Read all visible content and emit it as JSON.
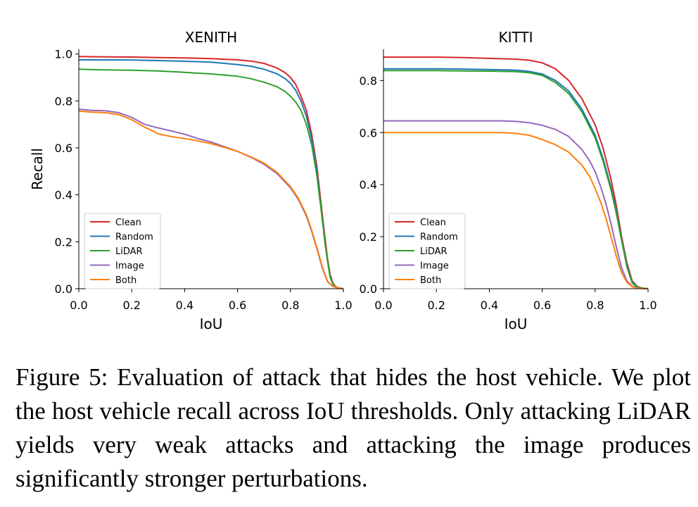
{
  "caption": "Figure 5: Evaluation of attack that hides the host vehicle. We plot the host vehicle recall across IoU thresholds. Only attacking LiDAR yields very weak attacks and attacking the image produces significantly stronger perturbations.",
  "chart_data": [
    {
      "type": "line",
      "title": "XENITH",
      "xlabel": "IoU",
      "ylabel": "Recall",
      "xlim": [
        0.0,
        1.0
      ],
      "ylim": [
        -0.0,
        1.02
      ],
      "xticks": [
        0.0,
        0.2,
        0.4,
        0.6,
        0.8,
        1.0
      ],
      "yticks": [
        0.0,
        0.2,
        0.4,
        0.6,
        0.8,
        1.0
      ],
      "x_tick_labels": [
        "0.0",
        "0.2",
        "0.4",
        "0.6",
        "0.8",
        "1.0"
      ],
      "y_tick_labels": [
        "0.0",
        "0.2",
        "0.4",
        "0.6",
        "0.8",
        "1.0"
      ],
      "grid": false,
      "legend": "lower-left",
      "series": [
        {
          "name": "Clean",
          "color": "#d62728",
          "x": [
            0.0,
            0.1,
            0.2,
            0.3,
            0.4,
            0.5,
            0.6,
            0.65,
            0.7,
            0.75,
            0.78,
            0.8,
            0.82,
            0.84,
            0.86,
            0.88,
            0.9,
            0.92,
            0.93,
            0.94,
            0.95,
            0.96,
            0.97,
            0.98,
            1.0
          ],
          "y": [
            0.989,
            0.988,
            0.987,
            0.985,
            0.983,
            0.98,
            0.975,
            0.97,
            0.96,
            0.94,
            0.92,
            0.9,
            0.87,
            0.82,
            0.76,
            0.66,
            0.52,
            0.32,
            0.22,
            0.13,
            0.06,
            0.025,
            0.01,
            0.004,
            0.0
          ]
        },
        {
          "name": "Random",
          "color": "#1f77b4",
          "x": [
            0.0,
            0.1,
            0.2,
            0.3,
            0.4,
            0.5,
            0.6,
            0.65,
            0.7,
            0.75,
            0.78,
            0.8,
            0.82,
            0.84,
            0.86,
            0.88,
            0.9,
            0.92,
            0.93,
            0.94,
            0.95,
            0.96,
            0.97,
            0.98,
            1.0
          ],
          "y": [
            0.975,
            0.975,
            0.974,
            0.972,
            0.969,
            0.965,
            0.955,
            0.948,
            0.935,
            0.915,
            0.895,
            0.875,
            0.845,
            0.8,
            0.735,
            0.64,
            0.5,
            0.3,
            0.2,
            0.12,
            0.05,
            0.02,
            0.008,
            0.003,
            0.0
          ]
        },
        {
          "name": "LiDAR",
          "color": "#2ca02c",
          "x": [
            0.0,
            0.1,
            0.2,
            0.3,
            0.4,
            0.5,
            0.6,
            0.65,
            0.7,
            0.75,
            0.78,
            0.8,
            0.82,
            0.84,
            0.86,
            0.88,
            0.9,
            0.92,
            0.93,
            0.94,
            0.95,
            0.96,
            0.97,
            0.98,
            1.0
          ],
          "y": [
            0.935,
            0.932,
            0.931,
            0.928,
            0.922,
            0.915,
            0.905,
            0.895,
            0.88,
            0.86,
            0.84,
            0.82,
            0.795,
            0.76,
            0.7,
            0.615,
            0.48,
            0.3,
            0.2,
            0.12,
            0.05,
            0.02,
            0.008,
            0.003,
            0.0
          ]
        },
        {
          "name": "Image",
          "color": "#9467bd",
          "x": [
            0.0,
            0.05,
            0.1,
            0.15,
            0.2,
            0.25,
            0.3,
            0.35,
            0.4,
            0.45,
            0.5,
            0.55,
            0.6,
            0.65,
            0.7,
            0.75,
            0.8,
            0.83,
            0.86,
            0.88,
            0.9,
            0.92,
            0.94,
            0.96,
            0.98,
            1.0
          ],
          "y": [
            0.765,
            0.76,
            0.758,
            0.75,
            0.73,
            0.7,
            0.685,
            0.672,
            0.658,
            0.64,
            0.625,
            0.605,
            0.585,
            0.56,
            0.53,
            0.49,
            0.43,
            0.38,
            0.31,
            0.245,
            0.17,
            0.09,
            0.03,
            0.01,
            0.003,
            0.0
          ]
        },
        {
          "name": "Both",
          "color": "#ff7f0e",
          "x": [
            0.0,
            0.05,
            0.1,
            0.15,
            0.2,
            0.25,
            0.3,
            0.35,
            0.4,
            0.45,
            0.5,
            0.55,
            0.6,
            0.65,
            0.7,
            0.75,
            0.8,
            0.83,
            0.86,
            0.88,
            0.9,
            0.92,
            0.94,
            0.96,
            0.98,
            1.0
          ],
          "y": [
            0.757,
            0.752,
            0.75,
            0.742,
            0.72,
            0.688,
            0.66,
            0.648,
            0.64,
            0.63,
            0.618,
            0.602,
            0.585,
            0.562,
            0.535,
            0.495,
            0.435,
            0.385,
            0.315,
            0.25,
            0.175,
            0.095,
            0.032,
            0.01,
            0.003,
            0.0
          ]
        }
      ]
    },
    {
      "type": "line",
      "title": "KITTI",
      "xlabel": "IoU",
      "ylabel": "",
      "xlim": [
        0.0,
        1.0
      ],
      "ylim": [
        -0.0,
        0.92
      ],
      "xticks": [
        0.0,
        0.2,
        0.4,
        0.6,
        0.8,
        1.0
      ],
      "yticks": [
        0.0,
        0.2,
        0.4,
        0.6,
        0.8
      ],
      "x_tick_labels": [
        "0.0",
        "0.2",
        "0.4",
        "0.6",
        "0.8",
        "1.0"
      ],
      "y_tick_labels": [
        "0.0",
        "0.2",
        "0.4",
        "0.6",
        "0.8"
      ],
      "grid": false,
      "legend": "lower-left",
      "series": [
        {
          "name": "Clean",
          "color": "#d62728",
          "x": [
            0.0,
            0.1,
            0.2,
            0.3,
            0.4,
            0.5,
            0.55,
            0.6,
            0.65,
            0.7,
            0.75,
            0.8,
            0.83,
            0.86,
            0.88,
            0.9,
            0.92,
            0.94,
            0.96,
            0.98,
            1.0
          ],
          "y": [
            0.89,
            0.89,
            0.89,
            0.888,
            0.885,
            0.882,
            0.878,
            0.868,
            0.845,
            0.8,
            0.73,
            0.63,
            0.54,
            0.42,
            0.32,
            0.2,
            0.1,
            0.03,
            0.008,
            0.002,
            0.0
          ]
        },
        {
          "name": "Random",
          "color": "#1f77b4",
          "x": [
            0.0,
            0.1,
            0.2,
            0.3,
            0.4,
            0.5,
            0.55,
            0.6,
            0.65,
            0.7,
            0.75,
            0.8,
            0.83,
            0.86,
            0.88,
            0.9,
            0.92,
            0.94,
            0.96,
            0.98,
            1.0
          ],
          "y": [
            0.845,
            0.845,
            0.845,
            0.844,
            0.842,
            0.84,
            0.835,
            0.825,
            0.8,
            0.76,
            0.69,
            0.59,
            0.5,
            0.39,
            0.3,
            0.19,
            0.09,
            0.025,
            0.007,
            0.002,
            0.0
          ]
        },
        {
          "name": "LiDAR",
          "color": "#2ca02c",
          "x": [
            0.0,
            0.1,
            0.2,
            0.3,
            0.4,
            0.5,
            0.55,
            0.6,
            0.65,
            0.7,
            0.75,
            0.8,
            0.83,
            0.86,
            0.88,
            0.9,
            0.92,
            0.94,
            0.96,
            0.98,
            1.0
          ],
          "y": [
            0.838,
            0.838,
            0.838,
            0.837,
            0.836,
            0.834,
            0.83,
            0.82,
            0.792,
            0.75,
            0.68,
            0.58,
            0.49,
            0.38,
            0.29,
            0.185,
            0.085,
            0.022,
            0.006,
            0.002,
            0.0
          ]
        },
        {
          "name": "Image",
          "color": "#9467bd",
          "x": [
            0.0,
            0.1,
            0.2,
            0.3,
            0.4,
            0.45,
            0.5,
            0.55,
            0.6,
            0.65,
            0.7,
            0.75,
            0.78,
            0.8,
            0.82,
            0.84,
            0.86,
            0.88,
            0.9,
            0.92,
            0.94,
            0.96,
            0.98,
            1.0
          ],
          "y": [
            0.645,
            0.645,
            0.645,
            0.645,
            0.645,
            0.645,
            0.643,
            0.638,
            0.628,
            0.612,
            0.585,
            0.535,
            0.49,
            0.45,
            0.395,
            0.33,
            0.25,
            0.16,
            0.08,
            0.03,
            0.01,
            0.003,
            0.001,
            0.0
          ]
        },
        {
          "name": "Both",
          "color": "#ff7f0e",
          "x": [
            0.0,
            0.1,
            0.2,
            0.3,
            0.4,
            0.45,
            0.5,
            0.55,
            0.6,
            0.65,
            0.7,
            0.75,
            0.78,
            0.8,
            0.82,
            0.84,
            0.86,
            0.88,
            0.9,
            0.92,
            0.94,
            0.96,
            0.98,
            1.0
          ],
          "y": [
            0.6,
            0.6,
            0.6,
            0.6,
            0.6,
            0.6,
            0.597,
            0.59,
            0.573,
            0.553,
            0.525,
            0.475,
            0.43,
            0.385,
            0.335,
            0.275,
            0.2,
            0.125,
            0.062,
            0.025,
            0.008,
            0.002,
            0.001,
            0.0
          ]
        }
      ]
    }
  ]
}
